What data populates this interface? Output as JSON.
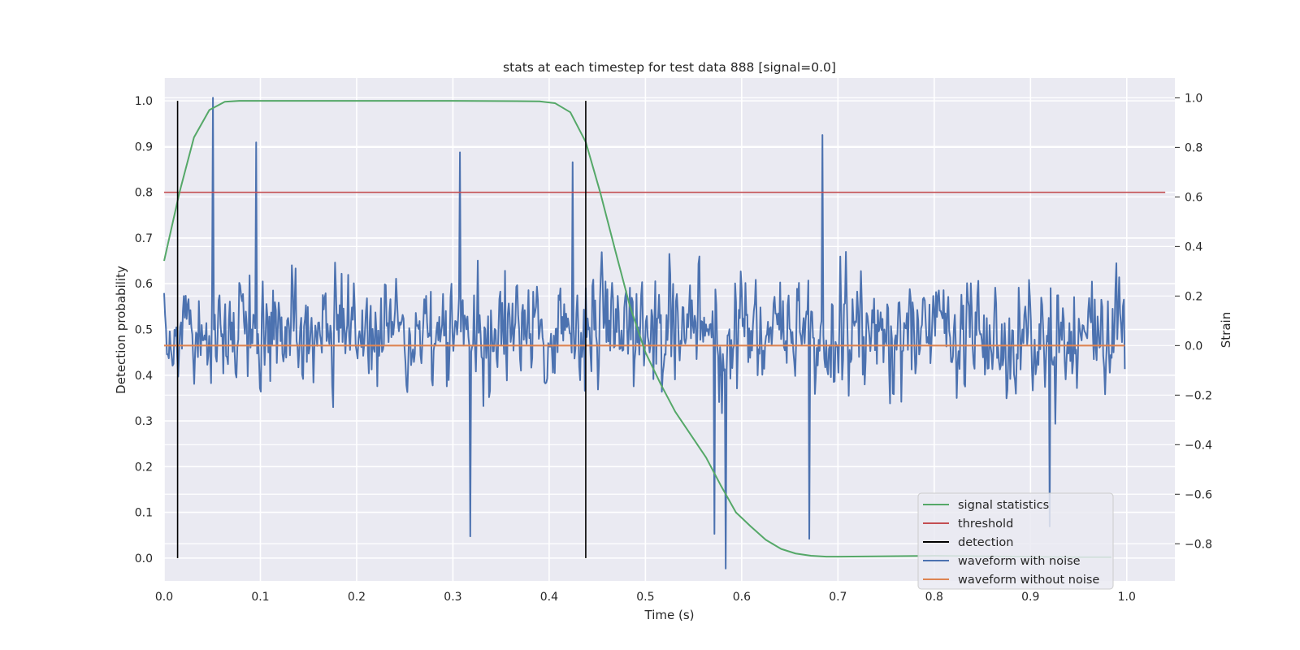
{
  "chart_data": {
    "type": "line",
    "title": "stats at each timestep for test data 888 [signal=0.0]",
    "xlabel": "Time (s)",
    "ylabel": "Detection probability",
    "y2label": "Strain",
    "xlim": [
      0.0,
      1.05
    ],
    "ylim": [
      -0.05,
      1.05
    ],
    "y2lim": [
      -0.95,
      1.08
    ],
    "xticks": [
      0.0,
      0.1,
      0.2,
      0.3,
      0.4,
      0.5,
      0.6,
      0.7,
      0.8,
      0.9,
      1.0
    ],
    "xtick_labels": [
      "0.0",
      "0.1",
      "0.2",
      "0.3",
      "0.4",
      "0.5",
      "0.6",
      "0.7",
      "0.8",
      "0.9",
      "1.0"
    ],
    "yticks": [
      0.0,
      0.1,
      0.2,
      0.3,
      0.4,
      0.5,
      0.6,
      0.7,
      0.8,
      0.9,
      1.0
    ],
    "ytick_labels": [
      "0.0",
      "0.1",
      "0.2",
      "0.3",
      "0.4",
      "0.5",
      "0.6",
      "0.7",
      "0.8",
      "0.9",
      "1.0"
    ],
    "y2ticks": [
      -0.8,
      -0.6,
      -0.4,
      -0.2,
      0.0,
      0.2,
      0.4,
      0.6,
      0.8,
      1.0
    ],
    "y2tick_labels": [
      "−0.8",
      "−0.6",
      "−0.4",
      "−0.2",
      "0.0",
      "0.2",
      "0.4",
      "0.6",
      "0.8",
      "1.0"
    ],
    "grid": true,
    "legend_position": "lower-right",
    "colors": {
      "background": "#eaeaf2",
      "grid": "#ffffff",
      "signal_statistics": "#55a868",
      "threshold": "#c44e52",
      "detection": "#000000",
      "waveform_with_noise": "#4c72b0",
      "waveform_without_noise": "#dd8452"
    },
    "series": [
      {
        "name": "signal statistics",
        "axis": "left",
        "x": [
          0.0,
          0.016,
          0.031,
          0.047,
          0.063,
          0.078,
          0.1,
          0.2,
          0.3,
          0.39,
          0.406,
          0.422,
          0.438,
          0.453,
          0.469,
          0.484,
          0.5,
          0.516,
          0.531,
          0.547,
          0.563,
          0.578,
          0.594,
          0.609,
          0.625,
          0.641,
          0.656,
          0.672,
          0.688,
          0.703,
          0.75,
          0.8,
          0.85,
          0.9,
          0.95,
          0.984
        ],
        "values": [
          0.65,
          0.8,
          0.92,
          0.98,
          0.998,
          1.0,
          1.0,
          1.0,
          1.0,
          0.999,
          0.995,
          0.975,
          0.91,
          0.8,
          0.67,
          0.55,
          0.45,
          0.38,
          0.32,
          0.27,
          0.22,
          0.16,
          0.1,
          0.07,
          0.04,
          0.02,
          0.01,
          0.005,
          0.003,
          0.003,
          0.004,
          0.005,
          0.004,
          0.003,
          0.002,
          0.002
        ]
      },
      {
        "name": "threshold",
        "axis": "left",
        "x": [
          0.0,
          1.04
        ],
        "values": [
          0.8,
          0.8
        ]
      },
      {
        "name": "detection",
        "axis": "left",
        "segments": [
          {
            "x": 0.014,
            "y_from": 0.0,
            "y_to": 1.0
          },
          {
            "x": 0.438,
            "y_from": 0.0,
            "y_to": 1.0
          }
        ]
      },
      {
        "name": "waveform with noise",
        "axis": "right",
        "x_range": [
          0.0,
          0.998
        ],
        "n_points": 1024,
        "typical_range": [
          -0.55,
          0.75
        ],
        "extremes": [
          {
            "x": 0.051,
            "value": 1.0
          },
          {
            "x": 0.684,
            "value": 0.85
          },
          {
            "x": 0.096,
            "value": 0.82
          },
          {
            "x": 0.307,
            "value": 0.78
          },
          {
            "x": 0.424,
            "value": 0.74
          },
          {
            "x": 0.583,
            "value": -0.9
          },
          {
            "x": 0.318,
            "value": -0.77
          },
          {
            "x": 0.92,
            "value": -0.73
          },
          {
            "x": 0.572,
            "value": -0.76
          },
          {
            "x": 0.67,
            "value": -0.78
          }
        ]
      },
      {
        "name": "waveform without noise",
        "axis": "right",
        "x": [
          0.0,
          0.998
        ],
        "values": [
          0.0,
          0.0
        ]
      }
    ]
  }
}
